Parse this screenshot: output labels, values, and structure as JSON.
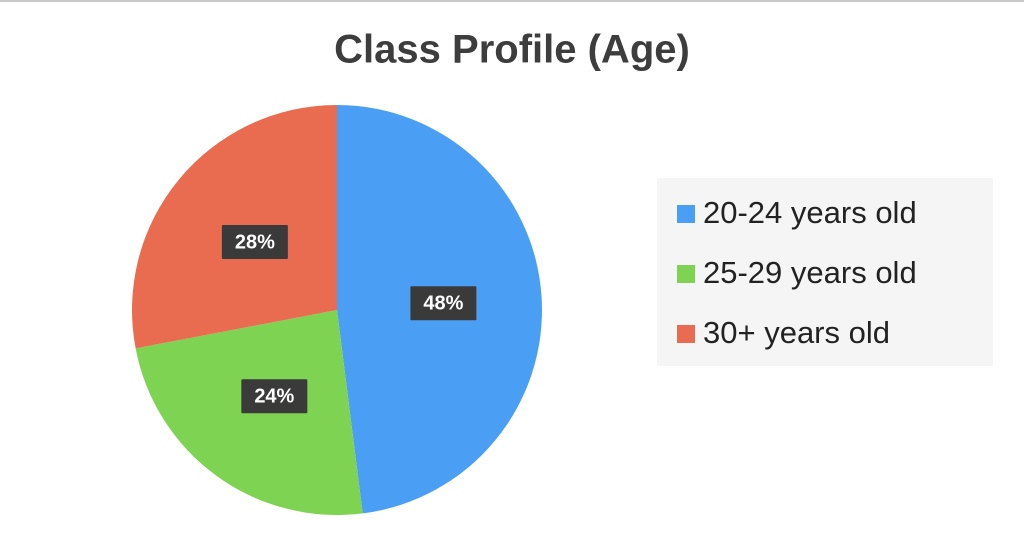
{
  "chart_data": {
    "type": "pie",
    "title": "Class Profile (Age)",
    "categories": [
      "20-24 years old",
      "25-29 years old",
      "30+ years old"
    ],
    "values": [
      48,
      24,
      28
    ],
    "value_labels": [
      "48%",
      "24%",
      "28%"
    ],
    "colors": [
      "#4a9ff5",
      "#7ed353",
      "#ea6c50"
    ],
    "legend": "right"
  }
}
